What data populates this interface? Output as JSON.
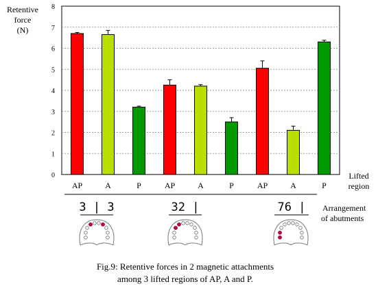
{
  "colors": {
    "AP": "#ff0000",
    "A": "#bbdd00",
    "P": "#009900",
    "dot": "#cc0044"
  },
  "ylabel_lines": [
    "Retentive",
    "force",
    "(N)"
  ],
  "xlabel_lines": [
    "Lifted",
    "region"
  ],
  "arrangement_label_lines": [
    "Arrangement",
    "of abutments"
  ],
  "caption_lines": [
    "Fig.9: Retentive forces in 2 magnetic attachments",
    "among 3 lifted regions of AP, A and P."
  ],
  "groups": [
    {
      "label": "3 | 3",
      "highlight": "first-premolars-both"
    },
    {
      "label": "32 |",
      "highlight": "one-side-anterior"
    },
    {
      "label": "76 |",
      "highlight": "one-side-molars"
    }
  ],
  "chart_data": {
    "type": "bar",
    "categories": [
      "AP",
      "A",
      "P",
      "AP",
      "A",
      "P",
      "AP",
      "A",
      "P"
    ],
    "values": [
      6.7,
      6.65,
      3.2,
      4.25,
      4.2,
      2.5,
      5.05,
      2.1,
      6.3
    ],
    "errors": [
      0.05,
      0.2,
      0.05,
      0.25,
      0.07,
      0.2,
      0.35,
      0.2,
      0.08
    ],
    "bar_colors": [
      "AP",
      "A",
      "P",
      "AP",
      "A",
      "P",
      "AP",
      "A",
      "P"
    ],
    "yticks": [
      "0",
      "1",
      "2",
      "3",
      "4",
      "5",
      "6",
      "7",
      "8"
    ],
    "ylim": [
      0,
      8
    ],
    "grid": "horizontal dotted"
  }
}
